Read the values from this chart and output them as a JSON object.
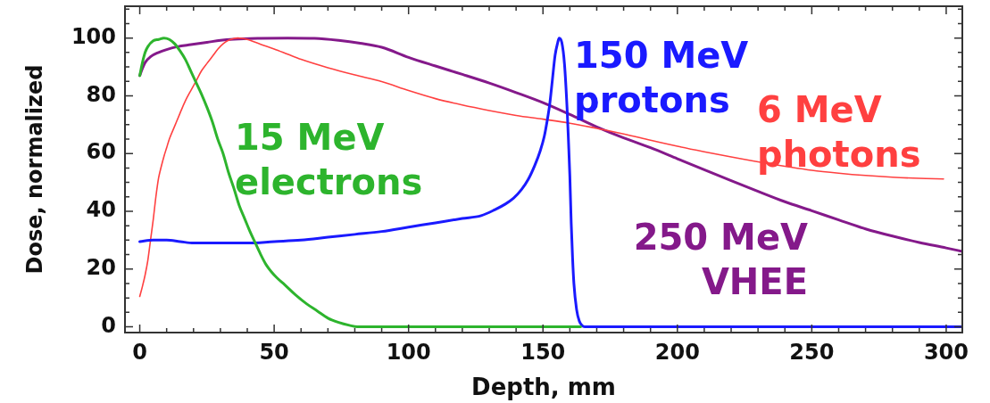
{
  "chart_data": {
    "type": "line",
    "xlabel": "Depth, mm",
    "ylabel": "Dose, normalized",
    "xlim": [
      -5.5,
      306
    ],
    "ylim": [
      -2,
      111
    ],
    "xticks": [
      0,
      {
        "value": 10,
        "label": null
      },
      {
        "value": 20,
        "label": null
      },
      {
        "value": 30,
        "label": null
      },
      {
        "value": 40,
        "label": null
      },
      50,
      {
        "value": 60,
        "label": null
      },
      {
        "value": 70,
        "label": null
      },
      {
        "value": 80,
        "label": null
      },
      {
        "value": 90,
        "label": null
      },
      100,
      {
        "value": 110,
        "label": null
      },
      {
        "value": 120,
        "label": null
      },
      {
        "value": 130,
        "label": null
      },
      {
        "value": 140,
        "label": null
      },
      150,
      {
        "value": 160,
        "label": null
      },
      {
        "value": 170,
        "label": null
      },
      {
        "value": 180,
        "label": null
      },
      {
        "value": 190,
        "label": null
      },
      200,
      {
        "value": 210,
        "label": null
      },
      {
        "value": 220,
        "label": null
      },
      {
        "value": 230,
        "label": null
      },
      {
        "value": 240,
        "label": null
      },
      250,
      {
        "value": 260,
        "label": null
      },
      {
        "value": 270,
        "label": null
      },
      {
        "value": 280,
        "label": null
      },
      {
        "value": 290,
        "label": null
      },
      300
    ],
    "yticks": [
      0,
      {
        "value": 5,
        "label": null
      },
      {
        "value": 10,
        "label": null
      },
      {
        "value": 15,
        "label": null
      },
      20,
      {
        "value": 25,
        "label": null
      },
      {
        "value": 30,
        "label": null
      },
      {
        "value": 35,
        "label": null
      },
      40,
      {
        "value": 45,
        "label": null
      },
      {
        "value": 50,
        "label": null
      },
      {
        "value": 55,
        "label": null
      },
      60,
      {
        "value": 65,
        "label": null
      },
      {
        "value": 70,
        "label": null
      },
      {
        "value": 75,
        "label": null
      },
      80,
      {
        "value": 85,
        "label": null
      },
      {
        "value": 90,
        "label": null
      },
      {
        "value": 95,
        "label": null
      },
      100,
      {
        "value": 105,
        "label": null
      },
      {
        "value": 110,
        "label": null
      }
    ],
    "series": [
      {
        "name": "15 MeV electrons",
        "color": "#2db42d",
        "x": [
          0,
          1,
          2,
          3,
          5,
          7,
          9,
          11,
          13,
          15,
          17,
          19,
          21,
          23,
          25,
          27,
          29,
          31,
          33,
          35,
          37,
          39,
          41,
          43,
          45,
          47,
          49,
          51,
          54,
          58,
          62,
          66,
          70,
          74,
          78,
          81,
          100,
          130,
          164
        ],
        "values": [
          87,
          91.5,
          95,
          97,
          99,
          99.5,
          100,
          99.5,
          98,
          95.5,
          92.5,
          88.5,
          84.5,
          80.5,
          76,
          71,
          65,
          60,
          53.5,
          48,
          42,
          37.5,
          33,
          29,
          25,
          21.5,
          19,
          17,
          14.5,
          11,
          8,
          5.5,
          3,
          1.5,
          0.5,
          0,
          0,
          0,
          0
        ]
      },
      {
        "name": "150 MeV protons",
        "color": "#1a1aff",
        "x": [
          0,
          5,
          10,
          15,
          20,
          30,
          40,
          50,
          60,
          70,
          80,
          90,
          100,
          110,
          120,
          127,
          132,
          136,
          139,
          142,
          144.5,
          147,
          149,
          150.5,
          151.5,
          152.5,
          153.5,
          154.5,
          155.5,
          156,
          157,
          158,
          159,
          159.5,
          160,
          160.5,
          161,
          161.5,
          162.5,
          163.5,
          164.5,
          165.5,
          200,
          250,
          306
        ],
        "values": [
          29.5,
          30,
          30,
          29.5,
          29,
          29,
          29,
          29.5,
          30,
          31,
          32,
          33,
          34.5,
          36,
          37.5,
          38.5,
          40.5,
          42.5,
          44.5,
          47.5,
          51,
          56,
          61,
          66,
          71,
          77,
          85.5,
          94,
          98.5,
          100,
          98.5,
          91,
          75,
          64,
          52,
          36,
          24,
          15,
          6,
          2,
          0.5,
          0,
          0,
          0,
          0
        ]
      },
      {
        "name": "6 MeV photons",
        "color": "#ff4040",
        "x": [
          0,
          1,
          2,
          3,
          4,
          5,
          6,
          7,
          8,
          9,
          10,
          11,
          13,
          15,
          17,
          19,
          21,
          23,
          25,
          27,
          29,
          31,
          33,
          35,
          36.5,
          38,
          40,
          45,
          50,
          55,
          60,
          70,
          80,
          90,
          100,
          110,
          120,
          130,
          140,
          150,
          160,
          170,
          180,
          190,
          200,
          210,
          220,
          230,
          240,
          250,
          260,
          270,
          280,
          290,
          299
        ],
        "values": [
          10.5,
          14,
          18,
          23,
          30,
          37,
          45,
          51.5,
          55.5,
          59,
          62,
          65,
          69.5,
          74,
          78.3,
          81.8,
          85.2,
          88.7,
          91.2,
          93.6,
          96.1,
          98,
          99.2,
          99.8,
          100,
          99.9,
          99.5,
          97.8,
          96.2,
          94.4,
          92.6,
          89.7,
          87.2,
          84.9,
          81.8,
          79,
          76.8,
          74.9,
          73.2,
          71.9,
          70.5,
          68.7,
          66.8,
          64.6,
          62.5,
          60.6,
          58.8,
          57.1,
          55.6,
          54.2,
          53.2,
          52.4,
          51.8,
          51.4,
          51.2
        ]
      },
      {
        "name": "250 MeV VHEE",
        "color": "#84198a",
        "x": [
          0,
          1,
          2,
          4,
          7,
          10,
          14,
          19,
          25,
          30,
          35,
          45,
          55,
          65,
          74,
          82,
          90,
          100,
          110,
          120,
          130,
          140,
          150,
          160,
          170,
          180,
          190,
          200,
          210,
          220,
          230,
          240,
          250,
          260,
          270,
          280,
          290,
          300,
          306
        ],
        "values": [
          87,
          89.5,
          91.5,
          93.5,
          95,
          96,
          97,
          97.7,
          98.5,
          99.2,
          99.6,
          99.9,
          100,
          99.9,
          99.2,
          98.2,
          96.8,
          93.3,
          90.3,
          87.4,
          84.4,
          81.1,
          77.6,
          73.5,
          69.2,
          65.4,
          62,
          58.2,
          54.4,
          50.6,
          46.9,
          43.3,
          40.2,
          37,
          33.9,
          31.4,
          29.2,
          27.3,
          26.1
        ]
      }
    ]
  }
}
